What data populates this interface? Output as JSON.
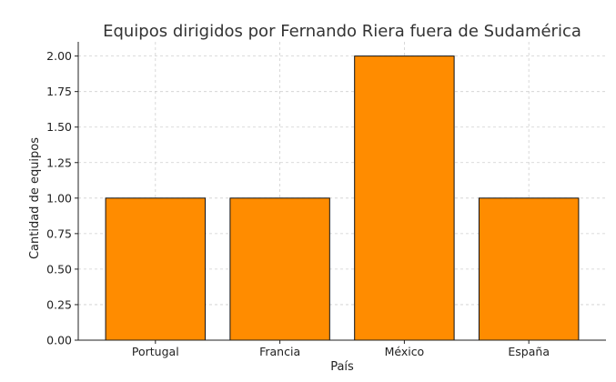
{
  "chart_data": {
    "type": "bar",
    "title": "Equipos dirigidos por Fernando Riera fuera de Sudamérica",
    "xlabel": "País",
    "ylabel": "Cantidad de equipos",
    "categories": [
      "Portugal",
      "Francia",
      "México",
      "España"
    ],
    "values": [
      1,
      1,
      2,
      1
    ],
    "ylim": [
      0,
      2.1
    ],
    "yticks": [
      "0.00",
      "0.25",
      "0.50",
      "0.75",
      "1.00",
      "1.25",
      "1.50",
      "1.75",
      "2.00"
    ],
    "grid": true,
    "bar_color": "#ff8c00"
  }
}
